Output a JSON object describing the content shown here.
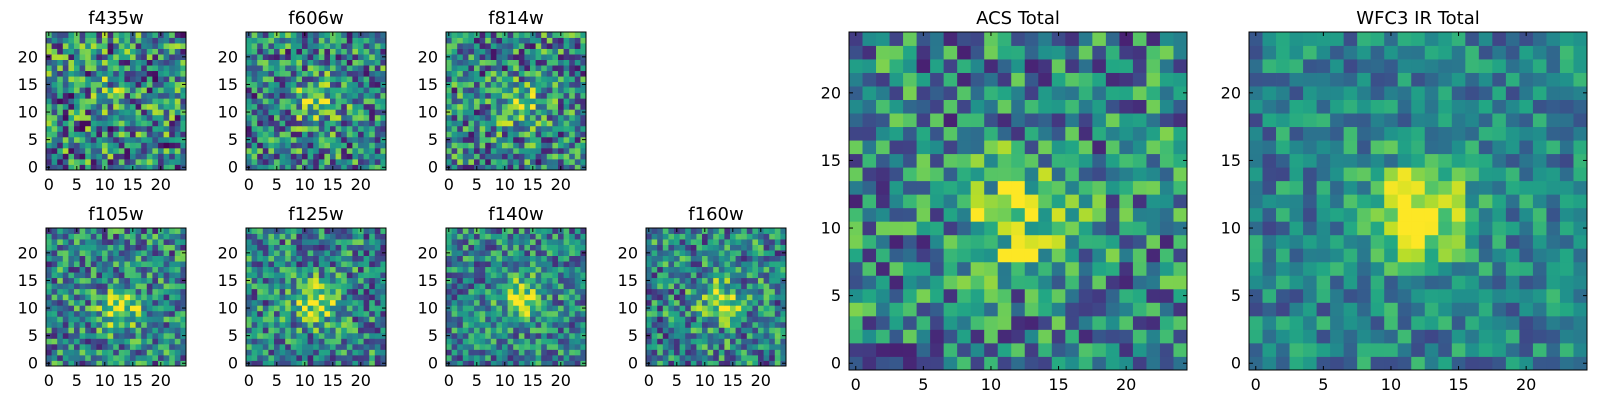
{
  "figure": {
    "background": "#ffffff",
    "colormap": "viridis"
  },
  "chart_data": [
    {
      "id": "f435w",
      "type": "heatmap",
      "title": "f435w",
      "xlim": [
        0,
        24
      ],
      "ylim": [
        0,
        24
      ],
      "xticks": [
        0,
        5,
        10,
        15,
        20
      ],
      "yticks": [
        0,
        5,
        10,
        15,
        20
      ],
      "grid_size": 25,
      "peak": [
        12,
        15
      ],
      "peak_strength": 0.15,
      "noise": 0.55,
      "seed": 11
    },
    {
      "id": "f606w",
      "type": "heatmap",
      "title": "f606w",
      "xlim": [
        0,
        24
      ],
      "ylim": [
        0,
        24
      ],
      "xticks": [
        0,
        5,
        10,
        15,
        20
      ],
      "yticks": [
        0,
        5,
        10,
        15,
        20
      ],
      "grid_size": 25,
      "peak": [
        12,
        12
      ],
      "peak_strength": 0.35,
      "noise": 0.5,
      "seed": 23
    },
    {
      "id": "f814w",
      "type": "heatmap",
      "title": "f814w",
      "xlim": [
        0,
        24
      ],
      "ylim": [
        0,
        24
      ],
      "xticks": [
        0,
        5,
        10,
        15,
        20
      ],
      "yticks": [
        0,
        5,
        10,
        15,
        20
      ],
      "grid_size": 25,
      "peak": [
        13,
        11
      ],
      "peak_strength": 0.35,
      "noise": 0.5,
      "seed": 37
    },
    {
      "id": "f105w",
      "type": "heatmap",
      "title": "f105w",
      "xlim": [
        0,
        24
      ],
      "ylim": [
        0,
        24
      ],
      "xticks": [
        0,
        5,
        10,
        15,
        20
      ],
      "yticks": [
        0,
        5,
        10,
        15,
        20
      ],
      "grid_size": 25,
      "peak": [
        13,
        10
      ],
      "peak_strength": 0.45,
      "noise": 0.45,
      "seed": 41
    },
    {
      "id": "f125w",
      "type": "heatmap",
      "title": "f125w",
      "xlim": [
        0,
        24
      ],
      "ylim": [
        0,
        24
      ],
      "xticks": [
        0,
        5,
        10,
        15,
        20
      ],
      "yticks": [
        0,
        5,
        10,
        15,
        20
      ],
      "grid_size": 25,
      "peak": [
        12,
        11
      ],
      "peak_strength": 0.5,
      "noise": 0.45,
      "seed": 53
    },
    {
      "id": "f140w",
      "type": "heatmap",
      "title": "f140w",
      "xlim": [
        0,
        24
      ],
      "ylim": [
        0,
        24
      ],
      "xticks": [
        0,
        5,
        10,
        15,
        20
      ],
      "yticks": [
        0,
        5,
        10,
        15,
        20
      ],
      "grid_size": 25,
      "peak": [
        13,
        12
      ],
      "peak_strength": 0.45,
      "noise": 0.4,
      "seed": 67
    },
    {
      "id": "f160w",
      "type": "heatmap",
      "title": "f160w",
      "xlim": [
        0,
        24
      ],
      "ylim": [
        0,
        24
      ],
      "xticks": [
        0,
        5,
        10,
        15,
        20
      ],
      "yticks": [
        0,
        5,
        10,
        15,
        20
      ],
      "grid_size": 25,
      "peak": [
        13,
        11
      ],
      "peak_strength": 0.45,
      "noise": 0.45,
      "seed": 79
    },
    {
      "id": "acs-total",
      "type": "heatmap",
      "title": "ACS Total",
      "xlim": [
        0,
        24
      ],
      "ylim": [
        0,
        24
      ],
      "xticks": [
        0,
        5,
        10,
        15,
        20
      ],
      "yticks": [
        0,
        5,
        10,
        15,
        20
      ],
      "grid_size": 25,
      "peak": [
        12,
        11
      ],
      "peak_strength": 0.45,
      "noise": 0.45,
      "seed": 97
    },
    {
      "id": "wfc3-ir-total",
      "type": "heatmap",
      "title": "WFC3 IR Total",
      "xlim": [
        0,
        24
      ],
      "ylim": [
        0,
        24
      ],
      "xticks": [
        0,
        5,
        10,
        15,
        20
      ],
      "yticks": [
        0,
        5,
        10,
        15,
        20
      ],
      "grid_size": 25,
      "peak": [
        12,
        11
      ],
      "peak_strength": 0.6,
      "noise": 0.3,
      "seed": 113
    }
  ]
}
